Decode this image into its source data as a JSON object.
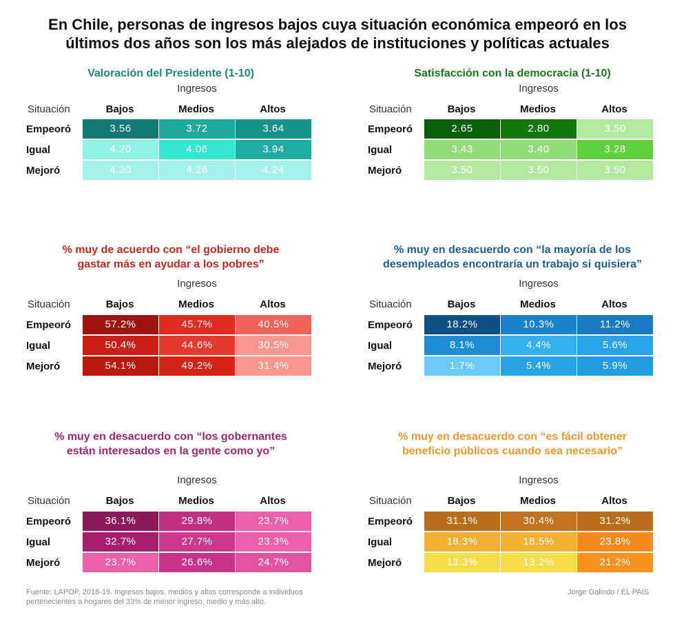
{
  "title": {
    "line1": "En Chile, personas de ingresos bajos cuya situación económica empeoró en los",
    "line2": "últimos dos años son los más alejados de instituciones y políticas actuales"
  },
  "common": {
    "ingresos": "Ingresos",
    "situacion": "Situación",
    "columns": [
      "Bajos",
      "Medios",
      "Altos"
    ],
    "rows": [
      "Empeoró",
      "Igual",
      "Mejoró"
    ]
  },
  "chart_data": [
    {
      "type": "heatmap",
      "title_lines": [
        "Valoración del Presidente (1-10)"
      ],
      "title_color": "#1a8a80",
      "xlabel": "Ingresos",
      "ylabel": "Situación",
      "cells": [
        [
          "3.56",
          "3.72",
          "3.64"
        ],
        [
          "4.20",
          "4.06",
          "3.94"
        ],
        [
          "4.30",
          "4.26",
          "4.24"
        ]
      ],
      "colors": [
        [
          "#137a72",
          "#1fa89e",
          "#17938a"
        ],
        [
          "#8ff0e4",
          "#33e6cf",
          "#1fada3"
        ],
        [
          "#a6f2ea",
          "#a6f2ea",
          "#a6f2ea"
        ]
      ]
    },
    {
      "type": "heatmap",
      "title_lines": [
        "Satisfacción con la democracia (1-10)"
      ],
      "title_color": "#1a7a1a",
      "xlabel": "Ingresos",
      "ylabel": "Situación",
      "cells": [
        [
          "2.65",
          "2.80",
          "3.50"
        ],
        [
          "3.43",
          "3.40",
          "3.28"
        ],
        [
          "3.50",
          "3.50",
          "3.50"
        ]
      ],
      "colors": [
        [
          "#0b5e0b",
          "#13780f",
          "#b2e8a0"
        ],
        [
          "#93dc7a",
          "#93dc7a",
          "#5fd13d"
        ],
        [
          "#b2e8a0",
          "#b2e8a0",
          "#b2e8a0"
        ]
      ]
    },
    {
      "type": "heatmap",
      "title_lines": [
        "% muy de acuerdo con “el gobierno debe",
        "gastar más en ayudar a los pobres”"
      ],
      "title_color": "#c8281e",
      "xlabel": "Ingresos",
      "ylabel": "Situación",
      "cells": [
        [
          "57.2%",
          "45.7%",
          "40.5%"
        ],
        [
          "50.4%",
          "44.6%",
          "30.5%"
        ],
        [
          "54.1%",
          "49.2%",
          "31.4%"
        ]
      ],
      "colors": [
        [
          "#9e1510",
          "#e12c22",
          "#ef6257"
        ],
        [
          "#cc1f18",
          "#e6392e",
          "#f7968c"
        ],
        [
          "#b8190f",
          "#d62318",
          "#f7968c"
        ]
      ]
    },
    {
      "type": "heatmap",
      "title_lines": [
        "% muy en desacuerdo con “la mayoría de los",
        "desempleados encontraría un trabajo si quisiera”"
      ],
      "title_color": "#1f5f8f",
      "xlabel": "Ingresos",
      "ylabel": "Situación",
      "cells": [
        [
          "18.2%",
          "10.3%",
          "11.2%"
        ],
        [
          "8.1%",
          "4.4%",
          "5.6%"
        ],
        [
          "1.7%",
          "5.4%",
          "5.9%"
        ]
      ],
      "colors": [
        [
          "#0e4f86",
          "#1a82c9",
          "#1a7ac0"
        ],
        [
          "#1d8dd6",
          "#34b0ef",
          "#29a4e8"
        ],
        [
          "#6cc8f7",
          "#2aa3e6",
          "#239ce1"
        ]
      ]
    },
    {
      "type": "heatmap",
      "title_lines": [
        "% muy en desacuerdo con “los gobernantes",
        "están interesados en la gente como yo”"
      ],
      "title_color": "#a3276f",
      "xlabel": "Ingresos",
      "ylabel": "Situación",
      "cells": [
        [
          "36.1%",
          "29.8%",
          "23.7%"
        ],
        [
          "32.7%",
          "27.7%",
          "23.3%"
        ],
        [
          "23.7%",
          "26.6%",
          "24.7%"
        ]
      ],
      "colors": [
        [
          "#8c1a5a",
          "#c12f83",
          "#ec5fa9"
        ],
        [
          "#a81f6d",
          "#cb3a8c",
          "#ec5fa9"
        ],
        [
          "#ec5fa9",
          "#c8338a",
          "#e254a0"
        ]
      ]
    },
    {
      "type": "heatmap",
      "title_lines": [
        "% muy en desacuerdo con “es fácil obtener",
        "beneficio públicos cuando sea necesario”"
      ],
      "title_color": "#f0982a",
      "xlabel": "Ingresos",
      "ylabel": "Situación",
      "cells": [
        [
          "31.1%",
          "30.4%",
          "31.2%"
        ],
        [
          "18.3%",
          "18.5%",
          "23.8%"
        ],
        [
          "13.3%",
          "13.2%",
          "21.2%"
        ]
      ],
      "colors": [
        [
          "#b86e1a",
          "#bf741d",
          "#b86e1a"
        ],
        [
          "#f0b032",
          "#f0b032",
          "#f28a1e"
        ],
        [
          "#f7dc4a",
          "#f7dc4a",
          "#f7911e"
        ]
      ]
    }
  ],
  "footer": {
    "source_line1": "Fuente: LAPOP, 2018-19. Ingresos bajos, medios y altos corresponde a individuos",
    "source_line2": "pertenecientes a hogares del 33% de menor ingreso, medio y más alto.",
    "credit": "Jorge Galindo / EL PAIS"
  }
}
